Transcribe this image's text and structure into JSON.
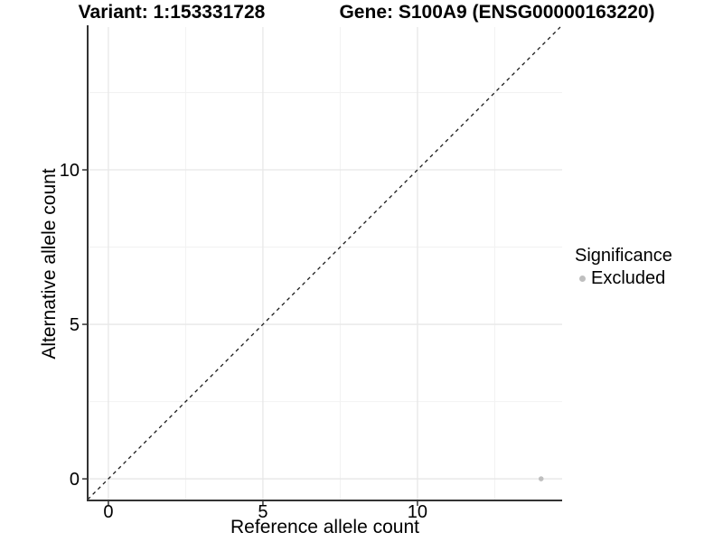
{
  "header": {
    "variant_title": "Variant: 1:153331728",
    "gene_title": "Gene: S100A9 (ENSG00000163220)"
  },
  "chart_data": {
    "type": "scatter",
    "title": "",
    "xlabel": "Reference allele count",
    "ylabel": "Alternative allele count",
    "xlim": [
      -0.67,
      14.68
    ],
    "ylim": [
      -0.67,
      14.62
    ],
    "x_ticks": [
      0,
      5,
      10
    ],
    "y_ticks": [
      0,
      5,
      10
    ],
    "x_minor_ticks": [
      2.5,
      7.5,
      12.5
    ],
    "y_minor_ticks": [
      2.5,
      7.5,
      12.5
    ],
    "grid": "major+minor",
    "identity_line": {
      "type": "y=x",
      "style": "dashed",
      "color": "#1a1a1a"
    },
    "series": [
      {
        "name": "Excluded",
        "marker_color": "#bfbfbf",
        "points": [
          {
            "x": 14,
            "y": 0
          }
        ]
      }
    ],
    "legend": {
      "title": "Significance",
      "position": "right",
      "entries": [
        {
          "label": "Excluded",
          "marker_color": "#bfbfbf"
        }
      ]
    },
    "colors": {
      "grid_major": "#e7e7e7",
      "grid_minor": "#f2f2f2",
      "axis": "#333333",
      "tick_text": "#000000"
    }
  }
}
